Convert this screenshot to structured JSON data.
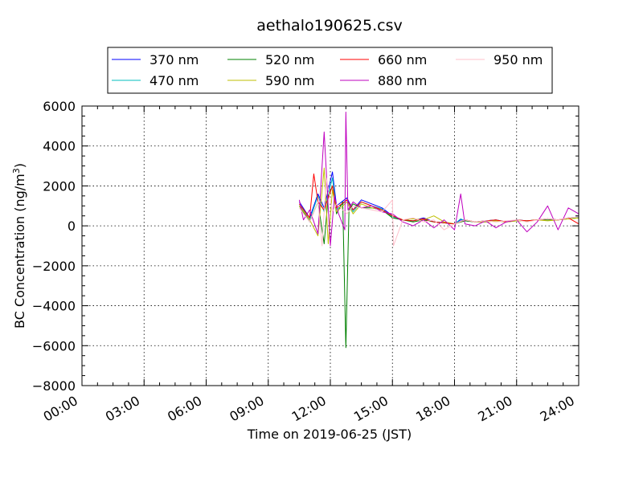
{
  "chart_data": {
    "type": "line",
    "title": "aethalo190625.csv",
    "xlabel": "Time on 2019-06-25 (JST)",
    "ylabel_main": "BC Concentration (ng/m",
    "ylabel_sup": "3",
    "ylabel_close": ")",
    "xlim_hours": [
      0,
      24
    ],
    "ylim": [
      -8000,
      6000
    ],
    "grid": true,
    "legend_placement": "top",
    "x_ticks": [
      {
        "hour": 0,
        "label": "00:00"
      },
      {
        "hour": 3,
        "label": "03:00"
      },
      {
        "hour": 6,
        "label": "06:00"
      },
      {
        "hour": 9,
        "label": "09:00"
      },
      {
        "hour": 12,
        "label": "12:00"
      },
      {
        "hour": 15,
        "label": "15:00"
      },
      {
        "hour": 18,
        "label": "18:00"
      },
      {
        "hour": 21,
        "label": "21:00"
      },
      {
        "hour": 24,
        "label": "24:00"
      }
    ],
    "y_ticks": [
      {
        "value": 6000,
        "label": "6000"
      },
      {
        "value": 4000,
        "label": "4000"
      },
      {
        "value": 2000,
        "label": "2000"
      },
      {
        "value": 0,
        "label": "0"
      },
      {
        "value": -2000,
        "label": "−2000"
      },
      {
        "value": -4000,
        "label": "−4000"
      },
      {
        "value": -6000,
        "label": "−6000"
      },
      {
        "value": -8000,
        "label": "−8000"
      }
    ],
    "series": [
      {
        "name": "370 nm",
        "color": "#0000ff",
        "x": [
          10.5,
          11.0,
          11.4,
          11.7,
          12.1,
          12.3,
          12.8,
          13.1,
          13.5,
          14.0,
          14.5,
          15.0,
          15.5,
          16.0,
          16.5,
          17.0,
          17.5,
          18.0,
          18.3,
          18.5,
          19.0,
          19.5,
          20.0,
          20.5,
          21.0,
          21.5,
          22.0,
          22.5,
          23.0,
          23.5,
          24.0
        ],
        "y": [
          1200,
          400,
          1600,
          900,
          2700,
          1000,
          1400,
          800,
          1300,
          1100,
          900,
          500,
          300,
          250,
          400,
          200,
          150,
          100,
          300,
          300,
          200,
          250,
          300,
          200,
          300,
          250,
          300,
          350,
          300,
          400,
          450
        ]
      },
      {
        "name": "470 nm",
        "color": "#00bfbf",
        "x": [
          10.5,
          11.0,
          11.4,
          11.7,
          12.1,
          12.3,
          12.8,
          13.1,
          13.5,
          14.0,
          14.5,
          15.0,
          15.5,
          16.0,
          16.5,
          17.0,
          17.5,
          18.0,
          18.3,
          18.5,
          19.0,
          19.5,
          20.0,
          20.5,
          21.0,
          21.5,
          22.0,
          22.5,
          23.0,
          23.5,
          24.0
        ],
        "y": [
          1100,
          300,
          1500,
          700,
          2400,
          800,
          1300,
          700,
          1200,
          1000,
          850,
          450,
          300,
          250,
          350,
          200,
          150,
          100,
          350,
          250,
          200,
          250,
          300,
          200,
          300,
          250,
          300,
          350,
          300,
          380,
          420
        ]
      },
      {
        "name": "520 nm",
        "color": "#008000",
        "x": [
          10.5,
          11.0,
          11.4,
          11.7,
          11.9,
          12.1,
          12.3,
          12.6,
          12.75,
          12.9,
          13.1,
          13.5,
          14.0,
          14.5,
          15.0,
          15.5,
          16.0,
          16.5,
          17.0,
          17.5,
          18.0,
          18.5,
          19.0,
          19.5,
          20.0,
          20.5,
          21.0,
          21.5,
          22.0,
          22.5,
          23.0,
          23.5,
          24.0
        ],
        "y": [
          1000,
          200,
          1200,
          -900,
          1500,
          2000,
          600,
          1200,
          -6100,
          800,
          1100,
          900,
          900,
          800,
          400,
          300,
          200,
          300,
          200,
          150,
          100,
          250,
          200,
          200,
          250,
          200,
          250,
          250,
          300,
          300,
          300,
          350,
          400
        ]
      },
      {
        "name": "590 nm",
        "color": "#bfbf00",
        "x": [
          10.5,
          11.0,
          11.4,
          11.7,
          11.9,
          12.1,
          12.3,
          12.8,
          13.1,
          13.5,
          14.0,
          14.5,
          15.0,
          15.5,
          16.0,
          16.5,
          17.0,
          17.5,
          18.0,
          18.5,
          19.0,
          19.5,
          20.0,
          20.5,
          21.0,
          21.5,
          22.0,
          22.5,
          23.0,
          23.5,
          24.0
        ],
        "y": [
          1000,
          300,
          -500,
          2900,
          -900,
          1800,
          700,
          1200,
          600,
          1100,
          900,
          800,
          500,
          300,
          350,
          300,
          500,
          200,
          100,
          300,
          200,
          200,
          250,
          200,
          250,
          250,
          300,
          250,
          300,
          350,
          400
        ]
      },
      {
        "name": "660 nm",
        "color": "#ff0000",
        "x": [
          10.5,
          11.0,
          11.2,
          11.4,
          11.7,
          12.1,
          12.3,
          12.8,
          13.1,
          13.5,
          14.0,
          14.5,
          15.0,
          15.5,
          16.0,
          16.5,
          17.0,
          17.5,
          18.0,
          18.5,
          19.0,
          19.5,
          20.0,
          20.5,
          21.0,
          21.5,
          22.0,
          22.5,
          23.0,
          23.5,
          24.0
        ],
        "y": [
          1100,
          400,
          2600,
          1200,
          800,
          2000,
          900,
          1300,
          800,
          1200,
          1000,
          800,
          500,
          300,
          250,
          350,
          200,
          150,
          100,
          300,
          200,
          250,
          300,
          200,
          300,
          250,
          300,
          350,
          300,
          400,
          100
        ]
      },
      {
        "name": "880 nm",
        "color": "#bf00bf",
        "x": [
          10.5,
          10.7,
          11.0,
          11.4,
          11.7,
          12.0,
          12.2,
          12.4,
          12.7,
          12.75,
          12.85,
          13.1,
          13.5,
          14.0,
          14.5,
          15.0,
          15.5,
          16.0,
          16.5,
          17.0,
          17.5,
          18.0,
          18.3,
          18.5,
          19.0,
          19.5,
          20.0,
          20.5,
          21.0,
          21.5,
          22.0,
          22.5,
          23.0,
          23.5,
          24.0
        ],
        "y": [
          1300,
          300,
          800,
          -400,
          4700,
          -1000,
          1500,
          600,
          -200,
          5700,
          800,
          1200,
          900,
          1000,
          700,
          600,
          200,
          0,
          300,
          -100,
          300,
          -200,
          1600,
          100,
          0,
          250,
          -100,
          200,
          300,
          -300,
          200,
          1000,
          -200,
          900,
          600
        ]
      },
      {
        "name": "950 nm",
        "color": "#ffc0cb",
        "x": [
          10.5,
          11.0,
          11.4,
          11.6,
          11.8,
          12.1,
          12.3,
          12.8,
          13.1,
          13.5,
          14.0,
          14.5,
          15.0,
          15.05,
          15.5,
          16.0,
          16.5,
          17.0,
          17.5,
          18.0,
          18.5,
          19.0,
          19.5,
          20.0,
          20.5,
          21.0,
          21.5,
          22.0,
          22.5,
          23.0,
          23.5,
          24.0
        ],
        "y": [
          900,
          200,
          1200,
          -1000,
          2400,
          700,
          1100,
          600,
          1000,
          900,
          800,
          700,
          1300,
          -1000,
          300,
          400,
          200,
          300,
          -200,
          100,
          300,
          200,
          250,
          200,
          250,
          300,
          200,
          300,
          350,
          300,
          400,
          450
        ]
      }
    ]
  }
}
